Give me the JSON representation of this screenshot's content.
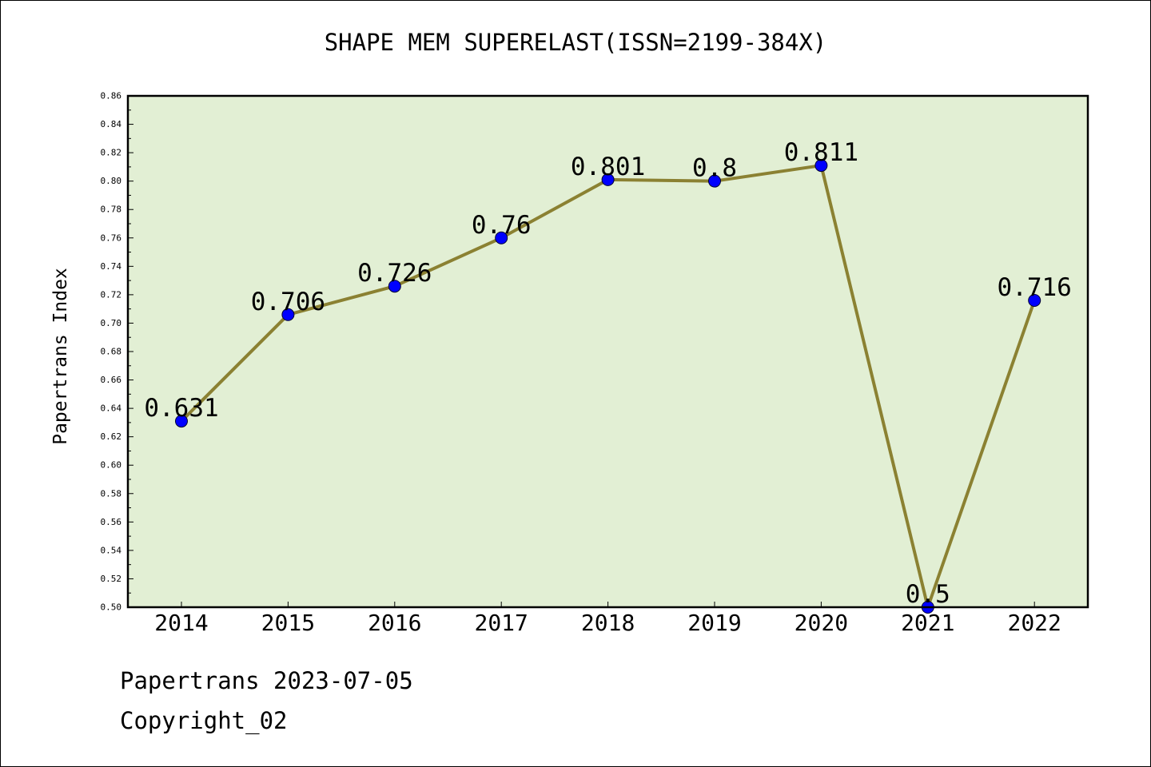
{
  "chart_data": {
    "type": "line",
    "title": "SHAPE MEM SUPERELAST(ISSN=2199-384X)",
    "ylabel": "Papertrans Index",
    "xlabel": "",
    "categories": [
      "2014",
      "2015",
      "2016",
      "2017",
      "2018",
      "2019",
      "2020",
      "2021",
      "2022"
    ],
    "series": [
      {
        "values": [
          0.631,
          0.706,
          0.726,
          0.76,
          0.801,
          0.8,
          0.811,
          0.5,
          0.716
        ]
      }
    ],
    "data_labels": [
      "0.631",
      "0.706",
      "0.726",
      "0.76",
      "0.801",
      "0.8",
      "0.811",
      "0.5",
      "0.716"
    ],
    "ylim": [
      0.5,
      0.86
    ],
    "yticks": [
      "0.50",
      "0.52",
      "0.54",
      "0.56",
      "0.58",
      "0.60",
      "0.62",
      "0.64",
      "0.66",
      "0.68",
      "0.70",
      "0.72",
      "0.74",
      "0.76",
      "0.78",
      "0.80",
      "0.82",
      "0.84",
      "0.86"
    ],
    "grid": false,
    "legend": "none",
    "colors": {
      "plot_background": "#e2efd4",
      "line": "#8b8132",
      "marker": "#0000ff"
    }
  },
  "footer": {
    "date": "Papertrans 2023-07-05",
    "copyright": "Copyright_02"
  }
}
